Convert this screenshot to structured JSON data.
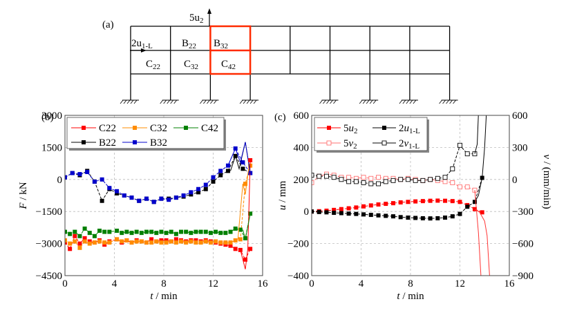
{
  "figure": {
    "panel_labels": [
      "(a)",
      "(b)",
      "(c)"
    ]
  },
  "diagram": {
    "label": "(a)",
    "bays": 8,
    "stories_upper": 2,
    "ground_columns_at": [
      0,
      1,
      2,
      3,
      5,
      6,
      7,
      8
    ],
    "highlight_color": "#ff2a00",
    "labels": {
      "u2_arrow": "5u",
      "u2_sub": "2",
      "u1_text": "2u",
      "u1_sub": "1-L",
      "B22": "B",
      "B22_sub": "22",
      "B32": "B",
      "B32_sub": "32",
      "C22": "C",
      "C22_sub": "22",
      "C32": "C",
      "C32_sub": "32",
      "C42": "C",
      "C42_sub": "42"
    }
  },
  "chart_data": [
    {
      "panel": "(b)",
      "type": "line",
      "title": "",
      "xlabel": "t / min",
      "ylabel": "F / kN",
      "xlim": [
        0,
        16
      ],
      "ylim": [
        -4500,
        3000
      ],
      "xticks": [
        0,
        4,
        8,
        12,
        16
      ],
      "yticks": [
        -4500,
        -3000,
        -1500,
        0,
        1500,
        3000
      ],
      "grid": true,
      "legend": "top-left",
      "series": [
        {
          "name": "C22",
          "color": "#ff0000",
          "x": [
            0,
            0.4,
            0.8,
            1.2,
            1.6,
            2.0,
            2.4,
            2.8,
            3.2,
            3.6,
            4.2,
            4.6,
            5.0,
            5.4,
            5.8,
            6.2,
            6.6,
            7.0,
            7.4,
            7.8,
            8.2,
            8.6,
            9.0,
            9.4,
            9.8,
            10.2,
            10.6,
            11.0,
            11.4,
            11.8,
            12.2,
            12.6,
            13.0,
            13.4,
            13.8,
            14.2,
            14.6,
            15.0
          ],
          "y": [
            -2950,
            -3250,
            -2650,
            -3000,
            -2750,
            -2900,
            -2950,
            -2850,
            -3050,
            -2900,
            -2800,
            -2950,
            -2850,
            -2950,
            -2850,
            -2900,
            -2950,
            -2800,
            -2900,
            -2850,
            -2850,
            -2900,
            -2800,
            -2850,
            -2900,
            -2850,
            -2850,
            -2900,
            -2850,
            -2900,
            -2950,
            -3000,
            -3050,
            -3100,
            -3250,
            -3300,
            -3750,
            -3250
          ]
        },
        {
          "name": "C32",
          "color": "#ff8c00",
          "x": [
            0,
            0.4,
            0.8,
            1.2,
            1.6,
            2.0,
            2.4,
            2.8,
            3.2,
            3.6,
            4.2,
            4.6,
            5.0,
            5.4,
            5.8,
            6.2,
            6.6,
            7.0,
            7.4,
            7.8,
            8.2,
            8.6,
            9.0,
            9.4,
            9.8,
            10.2,
            10.6,
            11.0,
            11.4,
            11.8,
            12.2,
            12.6,
            13.0,
            13.4,
            13.8,
            14.2,
            14.6,
            15.0
          ],
          "y": [
            -2850,
            -3000,
            -2900,
            -3200,
            -2900,
            -3000,
            -2950,
            -2900,
            -2950,
            -2950,
            -2800,
            -2900,
            -2850,
            -2950,
            -2900,
            -2900,
            -2950,
            -2950,
            -2900,
            -2950,
            -2950,
            -2900,
            -2950,
            -2900,
            -2950,
            -2900,
            -2950,
            -2950,
            -2900,
            -2950,
            -2900,
            -2950,
            -2950,
            -2950,
            -2850,
            -2800,
            -200,
            650
          ]
        },
        {
          "name": "C42",
          "color": "#008000",
          "x": [
            0,
            0.4,
            0.8,
            1.2,
            1.6,
            2.0,
            2.4,
            2.8,
            3.2,
            3.6,
            4.2,
            4.6,
            5.0,
            5.4,
            5.8,
            6.2,
            6.6,
            7.0,
            7.4,
            7.8,
            8.2,
            8.6,
            9.0,
            9.4,
            9.8,
            10.2,
            10.6,
            11.0,
            11.4,
            11.8,
            12.2,
            12.6,
            13.0,
            13.4,
            13.8,
            14.2,
            14.6,
            15.0
          ],
          "y": [
            -2450,
            -2550,
            -2450,
            -2650,
            -2300,
            -2500,
            -2650,
            -2400,
            -2450,
            -2450,
            -2400,
            -2500,
            -2450,
            -2500,
            -2450,
            -2500,
            -2450,
            -2450,
            -2500,
            -2450,
            -2500,
            -2450,
            -2550,
            -2450,
            -2450,
            -2500,
            -2450,
            -2450,
            -2450,
            -2500,
            -2450,
            -2500,
            -2500,
            -2450,
            -2300,
            -2350,
            -2750,
            -1600
          ]
        },
        {
          "name": "B22",
          "color": "#000000",
          "x": [
            0,
            0.6,
            1.2,
            1.8,
            2.4,
            3.0,
            3.6,
            4.2,
            4.8,
            5.4,
            6.0,
            6.6,
            7.2,
            7.8,
            8.4,
            9.0,
            9.6,
            10.2,
            10.8,
            11.4,
            12.0,
            12.6,
            13.2,
            13.8,
            14.4,
            15.0
          ],
          "y": [
            100,
            300,
            200,
            400,
            -100,
            -1000,
            -450,
            -650,
            -750,
            -850,
            -1000,
            -900,
            -1050,
            -900,
            -900,
            -850,
            -800,
            -700,
            -600,
            -450,
            -100,
            200,
            400,
            1100,
            500,
            300
          ]
        },
        {
          "name": "B32",
          "color": "#0000cc",
          "x": [
            0,
            0.6,
            1.2,
            1.8,
            2.4,
            3.0,
            3.6,
            4.2,
            4.8,
            5.4,
            6.0,
            6.6,
            7.2,
            7.8,
            8.4,
            9.0,
            9.6,
            10.2,
            10.8,
            11.4,
            12.0,
            12.6,
            13.2,
            13.8,
            14.4,
            15.0
          ],
          "y": [
            100,
            300,
            250,
            350,
            -100,
            0,
            -400,
            -550,
            -750,
            -850,
            -1000,
            -900,
            -1050,
            -900,
            -950,
            -850,
            -750,
            -600,
            -450,
            -250,
            100,
            400,
            650,
            1450,
            800,
            300
          ]
        }
      ]
    },
    {
      "panel": "(c)",
      "type": "line",
      "title": "",
      "xlabel": "t / min",
      "ylabel": "u / mm",
      "y2label": "v / (mm/min)",
      "xlim": [
        0,
        16
      ],
      "ylim": [
        -400,
        600
      ],
      "y2lim": [
        -900,
        600
      ],
      "xticks": [
        0,
        4,
        8,
        12,
        16
      ],
      "yticks": [
        -400,
        -200,
        0,
        200,
        400,
        600
      ],
      "y2ticks": [
        -900,
        -600,
        -300,
        0,
        300,
        600
      ],
      "grid": true,
      "legend": "top-left",
      "series": [
        {
          "name": "5u",
          "sub": "2",
          "color": "#ff0000",
          "marker": "filled",
          "axis": "left",
          "x": [
            0,
            0.6,
            1.2,
            1.8,
            2.4,
            3.0,
            3.6,
            4.2,
            4.8,
            5.4,
            6.0,
            6.6,
            7.2,
            7.8,
            8.4,
            9.0,
            9.6,
            10.2,
            10.8,
            11.4,
            12.0,
            12.6,
            13.2,
            13.8
          ],
          "y": [
            0,
            2,
            5,
            10,
            15,
            20,
            25,
            32,
            38,
            44,
            48,
            52,
            57,
            60,
            63,
            65,
            67,
            68,
            67,
            65,
            60,
            40,
            15,
            -5
          ]
        },
        {
          "name": "2u",
          "sub": "1-L",
          "color": "#000000",
          "marker": "filled",
          "axis": "left",
          "x": [
            0,
            0.6,
            1.2,
            1.8,
            2.4,
            3.0,
            3.6,
            4.2,
            4.8,
            5.4,
            6.0,
            6.6,
            7.2,
            7.8,
            8.4,
            9.0,
            9.6,
            10.2,
            10.8,
            11.4,
            12.0,
            12.6,
            13.2,
            13.8
          ],
          "y": [
            0,
            -3,
            -5,
            -8,
            -10,
            -13,
            -15,
            -18,
            -21,
            -24,
            -27,
            -30,
            -35,
            -38,
            -40,
            -42,
            -43,
            -42,
            -38,
            -30,
            -15,
            30,
            60,
            210
          ]
        },
        {
          "name": "5v",
          "sub": "2",
          "color": "#ff7070",
          "marker": "open",
          "axis": "right",
          "x": [
            0,
            0.6,
            1.2,
            1.8,
            2.4,
            3.0,
            3.6,
            4.2,
            4.8,
            5.4,
            6.0,
            6.6,
            7.2,
            7.8,
            8.4,
            9.0,
            9.6,
            10.2,
            10.8,
            11.4,
            12.0,
            12.6,
            13.2
          ],
          "y": [
            -30,
            30,
            50,
            40,
            20,
            20,
            10,
            20,
            10,
            20,
            10,
            10,
            0,
            10,
            0,
            -10,
            0,
            -10,
            -20,
            -30,
            -70,
            -70,
            -100
          ]
        },
        {
          "name": "2v",
          "sub": "1-L",
          "color": "#000000",
          "marker": "open",
          "axis": "right",
          "x": [
            0,
            0.6,
            1.2,
            1.8,
            2.4,
            3.0,
            3.6,
            4.2,
            4.8,
            5.4,
            6.0,
            6.6,
            7.2,
            7.8,
            8.4,
            9.0,
            9.6,
            10.2,
            10.8,
            11.4,
            12.0,
            12.6,
            13.2
          ],
          "y": [
            40,
            30,
            30,
            20,
            0,
            -20,
            -20,
            -30,
            -40,
            -40,
            -20,
            -10,
            0,
            0,
            -10,
            -10,
            0,
            10,
            20,
            100,
            320,
            240,
            240
          ]
        }
      ]
    }
  ]
}
